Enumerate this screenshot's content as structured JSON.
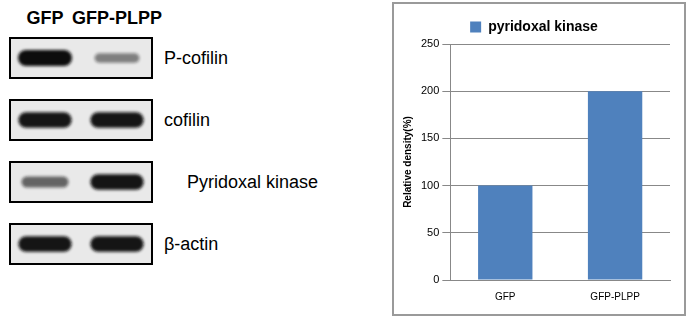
{
  "blot": {
    "lanes": [
      "GFP",
      "GFP-PLPP"
    ],
    "rows": [
      {
        "label": "P-cofilin",
        "intensities": [
          1.0,
          0.35
        ]
      },
      {
        "label": "cofilin",
        "intensities": [
          0.95,
          0.95
        ]
      },
      {
        "label": "Pyridoxal kinase",
        "intensities": [
          0.5,
          0.95
        ]
      },
      {
        "label": "β-actin",
        "intensities": [
          0.95,
          0.95
        ]
      }
    ]
  },
  "chart_data": {
    "type": "bar",
    "categories": [
      "GFP",
      "GFP-PLPP"
    ],
    "series": [
      {
        "name": "pyridoxal kinase",
        "color": "#4f81bd",
        "values": [
          100,
          200
        ]
      }
    ],
    "y_label": "Relative density(%)",
    "ylim": [
      0,
      250
    ],
    "yticks": [
      0,
      50,
      100,
      150,
      200,
      250
    ],
    "grid": true,
    "legend": "top"
  }
}
